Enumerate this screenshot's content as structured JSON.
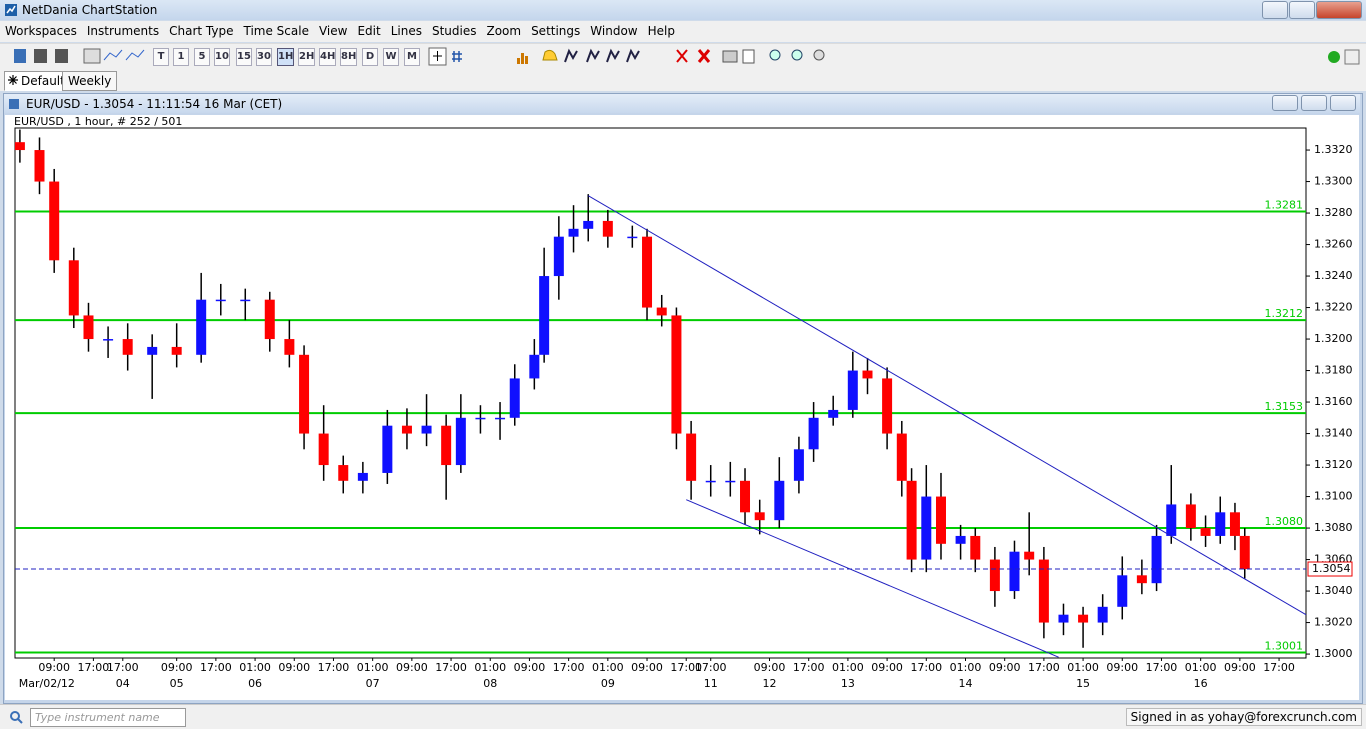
{
  "window": {
    "title": "NetDania ChartStation"
  },
  "menu": [
    "Workspaces",
    "Instruments",
    "Chart Type",
    "Time Scale",
    "View",
    "Edit",
    "Lines",
    "Studies",
    "Zoom",
    "Settings",
    "Window",
    "Help"
  ],
  "toolbar": {
    "timescales": [
      "T",
      "1",
      "5",
      "10",
      "15",
      "30",
      "1H",
      "2H",
      "4H",
      "8H",
      "D",
      "W",
      "M"
    ]
  },
  "tabs": [
    "Default",
    "Weekly"
  ],
  "chart_window": {
    "title": "EUR/USD - 1.3054 - 11:11:54 16 Mar (CET)"
  },
  "chart_data": {
    "type": "candlestick",
    "subtitle": "EUR/USD , 1 hour, # 252 / 501",
    "up_color": "#1010ff",
    "down_color": "#ff0000",
    "level_color": "#00cc00",
    "trend_color": "#2020c0",
    "price_color": "#2020c0",
    "xlim": [
      0,
      263.5
    ],
    "ylim": [
      1.29975,
      1.3334
    ],
    "x": [
      1,
      5,
      8,
      12,
      15,
      19,
      23,
      28,
      33,
      38,
      42,
      47,
      52,
      56,
      59,
      63,
      67,
      71,
      76,
      80,
      84,
      88,
      91,
      95,
      99,
      102,
      106,
      108,
      111,
      114,
      117,
      121,
      126,
      129,
      132,
      135,
      138,
      142,
      146,
      149,
      152,
      156,
      160,
      163,
      167,
      171,
      174,
      178,
      181,
      183,
      186,
      189,
      193,
      196,
      200,
      204,
      207,
      210,
      214,
      218,
      222,
      226,
      230,
      233,
      236,
      240,
      243,
      246,
      249,
      251
    ],
    "open": [
      1.3325,
      1.332,
      1.33,
      1.325,
      1.3215,
      1.32,
      1.32,
      1.319,
      1.3195,
      1.319,
      1.3225,
      1.3225,
      1.3225,
      1.32,
      1.319,
      1.314,
      1.312,
      1.311,
      1.3115,
      1.3145,
      1.314,
      1.3145,
      1.312,
      1.315,
      1.315,
      1.315,
      1.3175,
      1.319,
      1.324,
      1.3265,
      1.327,
      1.3275,
      1.3265,
      1.3265,
      1.322,
      1.3215,
      1.314,
      1.311,
      1.311,
      1.311,
      1.309,
      1.3085,
      1.311,
      1.313,
      1.315,
      1.3155,
      1.318,
      1.3175,
      1.314,
      1.311,
      1.306,
      1.31,
      1.307,
      1.3075,
      1.306,
      1.304,
      1.3065,
      1.306,
      1.302,
      1.3025,
      1.302,
      1.303,
      1.305,
      1.3045,
      1.3075,
      1.3095,
      1.308,
      1.3075,
      1.309,
      1.3075
    ],
    "high": [
      1.3333,
      1.3328,
      1.3308,
      1.3258,
      1.3223,
      1.3208,
      1.321,
      1.3203,
      1.321,
      1.3242,
      1.3235,
      1.3232,
      1.323,
      1.3212,
      1.3196,
      1.3158,
      1.3126,
      1.3122,
      1.3155,
      1.3156,
      1.3165,
      1.3152,
      1.3165,
      1.3158,
      1.316,
      1.3184,
      1.32,
      1.3258,
      1.3278,
      1.3285,
      1.3292,
      1.3282,
      1.3272,
      1.327,
      1.3228,
      1.322,
      1.3148,
      1.312,
      1.3122,
      1.3118,
      1.3098,
      1.3125,
      1.3138,
      1.316,
      1.3164,
      1.3192,
      1.3188,
      1.3182,
      1.3148,
      1.3118,
      1.312,
      1.3115,
      1.3082,
      1.308,
      1.3068,
      1.3072,
      1.309,
      1.3068,
      1.3032,
      1.303,
      1.3038,
      1.3062,
      1.306,
      1.3082,
      1.312,
      1.3102,
      1.3088,
      1.31,
      1.3096,
      1.308
    ],
    "low": [
      1.3312,
      1.3292,
      1.3242,
      1.3207,
      1.3192,
      1.3188,
      1.318,
      1.3162,
      1.3182,
      1.3185,
      1.3215,
      1.3212,
      1.3192,
      1.3182,
      1.313,
      1.311,
      1.3102,
      1.3102,
      1.3108,
      1.313,
      1.3132,
      1.3098,
      1.3115,
      1.314,
      1.3136,
      1.3145,
      1.3168,
      1.3185,
      1.3225,
      1.3255,
      1.3262,
      1.3258,
      1.3258,
      1.3212,
      1.3208,
      1.313,
      1.3098,
      1.31,
      1.31,
      1.3082,
      1.3076,
      1.308,
      1.3102,
      1.3122,
      1.3145,
      1.315,
      1.3165,
      1.313,
      1.31,
      1.3052,
      1.3052,
      1.306,
      1.306,
      1.3052,
      1.303,
      1.3035,
      1.305,
      1.301,
      1.3012,
      1.3004,
      1.3012,
      1.3022,
      1.3038,
      1.304,
      1.307,
      1.3072,
      1.3068,
      1.307,
      1.3066,
      1.3048
    ],
    "close": [
      1.332,
      1.33,
      1.325,
      1.3215,
      1.32,
      1.32,
      1.319,
      1.3195,
      1.319,
      1.3225,
      1.3225,
      1.3225,
      1.32,
      1.319,
      1.314,
      1.312,
      1.311,
      1.3115,
      1.3145,
      1.314,
      1.3145,
      1.312,
      1.315,
      1.315,
      1.315,
      1.3175,
      1.319,
      1.324,
      1.3265,
      1.327,
      1.3275,
      1.3265,
      1.3265,
      1.322,
      1.3215,
      1.314,
      1.311,
      1.311,
      1.311,
      1.309,
      1.3085,
      1.311,
      1.313,
      1.315,
      1.3155,
      1.318,
      1.3175,
      1.314,
      1.311,
      1.306,
      1.31,
      1.307,
      1.3075,
      1.306,
      1.304,
      1.3065,
      1.306,
      1.302,
      1.3025,
      1.302,
      1.303,
      1.305,
      1.3045,
      1.3075,
      1.3095,
      1.308,
      1.3075,
      1.309,
      1.3075,
      1.3054
    ],
    "levels": [
      1.3281,
      1.3212,
      1.3153,
      {
        "value": 1.308,
        "label": "1.3080"
      },
      1.3001
    ],
    "current_price": 1.3054,
    "trendlines": [
      {
        "x": [
          117,
          263.5
        ],
        "y": [
          1.3291,
          1.3025
        ]
      },
      {
        "x": [
          137,
          213
        ],
        "y": [
          1.3098,
          1.2998
        ]
      }
    ],
    "yticks": [
      {
        "value": 1.3,
        "label": "1.3000"
      },
      {
        "value": 1.302,
        "label": "1.3020"
      },
      {
        "value": 1.304,
        "label": "1.3040"
      },
      {
        "value": 1.306,
        "label": "1.3060"
      },
      {
        "value": 1.308,
        "label": "1.3080"
      },
      {
        "value": 1.31,
        "label": "1.3100"
      },
      {
        "value": 1.312,
        "label": "1.3120"
      },
      {
        "value": 1.314,
        "label": "1.3140"
      },
      {
        "value": 1.316,
        "label": "1.3160"
      },
      {
        "value": 1.318,
        "label": "1.3180"
      },
      {
        "value": 1.32,
        "label": "1.3200"
      },
      {
        "value": 1.322,
        "label": "1.3220"
      },
      {
        "value": 1.324,
        "label": "1.3240"
      },
      {
        "value": 1.326,
        "label": "1.3260"
      },
      {
        "value": 1.328,
        "label": "1.3280"
      },
      {
        "value": 1.33,
        "label": "1.3300"
      },
      {
        "value": 1.332,
        "label": "1.3320"
      }
    ],
    "xticks": [
      {
        "value": 8,
        "label": "09:00"
      },
      {
        "value": 16,
        "label": "17:00"
      },
      {
        "value": 22,
        "label": "17:00"
      },
      {
        "value": 33,
        "label": "09:00"
      },
      {
        "value": 41,
        "label": "17:00"
      },
      {
        "value": 49,
        "label": "01:00"
      },
      {
        "value": 57,
        "label": "09:00"
      },
      {
        "value": 65,
        "label": "17:00"
      },
      {
        "value": 73,
        "label": "01:00"
      },
      {
        "value": 81,
        "label": "09:00"
      },
      {
        "value": 89,
        "label": "17:00"
      },
      {
        "value": 97,
        "label": "01:00"
      },
      {
        "value": 105,
        "label": "09:00"
      },
      {
        "value": 113,
        "label": "17:00"
      },
      {
        "value": 121,
        "label": "01:00"
      },
      {
        "value": 129,
        "label": "09:00"
      },
      {
        "value": 137,
        "label": "17:00"
      },
      {
        "value": 142,
        "label": "17:00"
      },
      {
        "value": 154,
        "label": "09:00"
      },
      {
        "value": 162,
        "label": "17:00"
      },
      {
        "value": 170,
        "label": "01:00"
      },
      {
        "value": 178,
        "label": "09:00"
      },
      {
        "value": 186,
        "label": "17:00"
      },
      {
        "value": 194,
        "label": "01:00"
      },
      {
        "value": 202,
        "label": "09:00"
      },
      {
        "value": 210,
        "label": "17:00"
      },
      {
        "value": 218,
        "label": "01:00"
      },
      {
        "value": 226,
        "label": "09:00"
      },
      {
        "value": 234,
        "label": "17:00"
      },
      {
        "value": 242,
        "label": "01:00"
      },
      {
        "value": 250,
        "label": "09:00"
      },
      {
        "value": 258,
        "label": "17:00"
      }
    ],
    "xticks_dates": [
      {
        "value": 6.5,
        "label": "Mar/02/12"
      },
      {
        "value": 22,
        "label": "04"
      },
      {
        "value": 33,
        "label": "05"
      },
      {
        "value": 49,
        "label": "06"
      },
      {
        "value": 73,
        "label": "07"
      },
      {
        "value": 97,
        "label": "08"
      },
      {
        "value": 121,
        "label": "09"
      },
      {
        "value": 142,
        "label": "11"
      },
      {
        "value": 154,
        "label": "12"
      },
      {
        "value": 170,
        "label": "13"
      },
      {
        "value": 194,
        "label": "14"
      },
      {
        "value": 218,
        "label": "15"
      },
      {
        "value": 242,
        "label": "16"
      }
    ]
  },
  "status": {
    "search_placeholder": "Type instrument name",
    "signed_in": "Signed in as yohay@forexcrunch.com"
  }
}
